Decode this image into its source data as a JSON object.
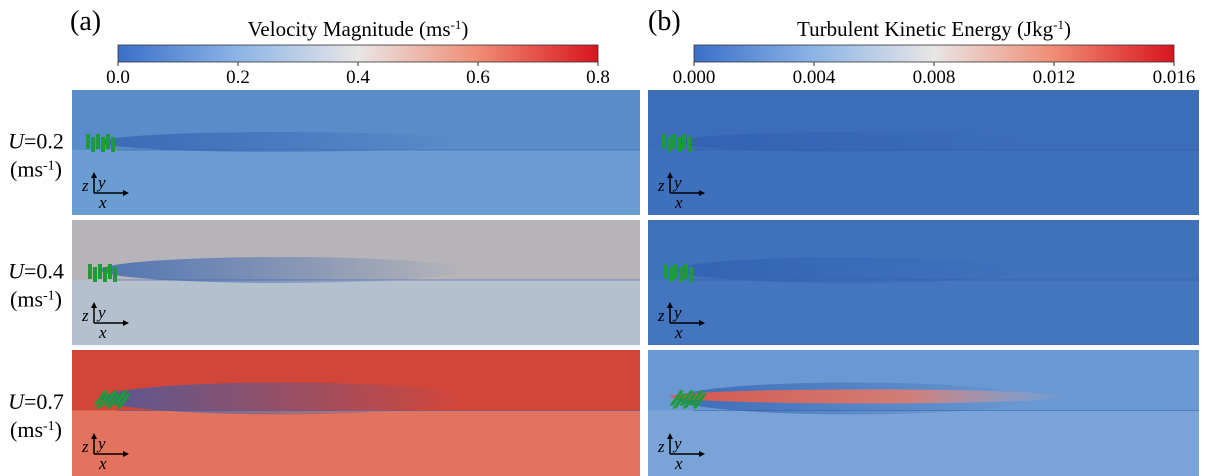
{
  "panels": [
    {
      "letter": "(a)",
      "colorbar": {
        "title": "Velocity Magnitude (ms",
        "title_sup": "-1",
        "title_end": ")",
        "ticks": [
          "0.0",
          "0.2",
          "0.4",
          "0.6",
          "0.8"
        ]
      }
    },
    {
      "letter": "(b)",
      "colorbar": {
        "title": "Turbulent Kinetic Energy (Jkg",
        "title_sup": "-1",
        "title_end": ")",
        "ticks": [
          "0.000",
          "0.004",
          "0.008",
          "0.012",
          "0.016"
        ]
      }
    }
  ],
  "rows": [
    {
      "var": "U",
      "value": "=0.2",
      "unit": "(ms",
      "unit_sup": "-1",
      "unit_end": ")"
    },
    {
      "var": "U",
      "value": "=0.4",
      "unit": "(ms",
      "unit_sup": "-1",
      "unit_end": ")"
    },
    {
      "var": "U",
      "value": "=0.7",
      "unit": "(ms",
      "unit_sup": "-1",
      "unit_end": ")"
    }
  ],
  "axis_labels": {
    "z": "z",
    "y": "y",
    "x": "x"
  }
}
